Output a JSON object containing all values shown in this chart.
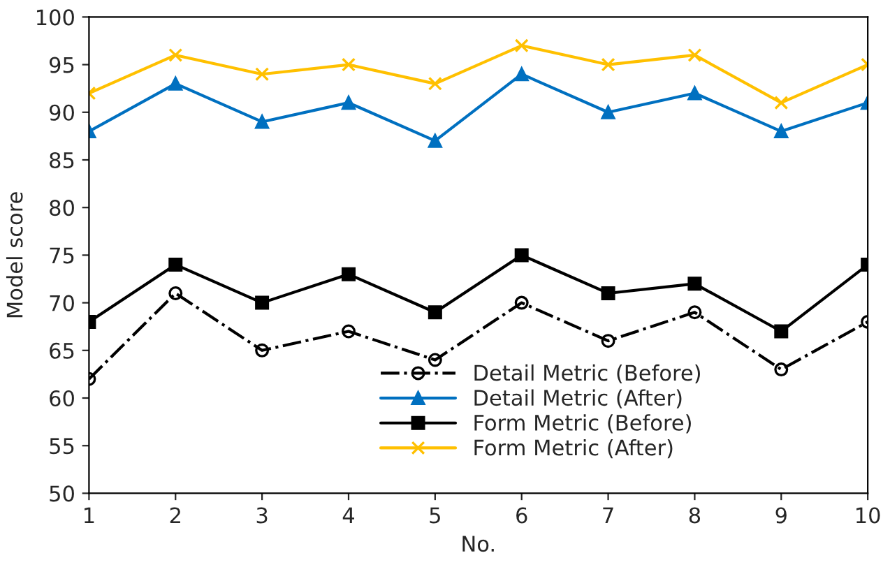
{
  "chart_data": {
    "type": "line",
    "xlabel": "No.",
    "ylabel": "Model score",
    "x": [
      1,
      2,
      3,
      4,
      5,
      6,
      7,
      8,
      9,
      10
    ],
    "xlim": [
      1,
      10
    ],
    "xticks": [
      1,
      2,
      3,
      4,
      5,
      6,
      7,
      8,
      9,
      10
    ],
    "ylim": [
      50,
      100
    ],
    "yticks": [
      50,
      55,
      60,
      65,
      70,
      75,
      80,
      85,
      90,
      95,
      100
    ],
    "grid": false,
    "legend": "bottom",
    "series": [
      {
        "name": "Detail Metric (Before)",
        "color": "#000000",
        "marker": "circle",
        "line_style": "dashdot",
        "values": [
          62,
          71,
          65,
          67,
          64,
          70,
          66,
          69,
          63,
          68
        ]
      },
      {
        "name": "Detail Metric (After)",
        "color": "#0070c0",
        "marker": "triangle",
        "line_style": "solid",
        "values": [
          88,
          93,
          89,
          91,
          87,
          94,
          90,
          92,
          88,
          91
        ]
      },
      {
        "name": "Form Metric (Before)",
        "color": "#000000",
        "marker": "square",
        "line_style": "solid",
        "values": [
          68,
          74,
          70,
          73,
          69,
          75,
          71,
          72,
          67,
          74
        ]
      },
      {
        "name": "Form Metric (After)",
        "color": "#ffc000",
        "marker": "cross",
        "line_style": "solid",
        "values": [
          92,
          96,
          94,
          95,
          93,
          97,
          95,
          96,
          91,
          95
        ]
      }
    ]
  }
}
